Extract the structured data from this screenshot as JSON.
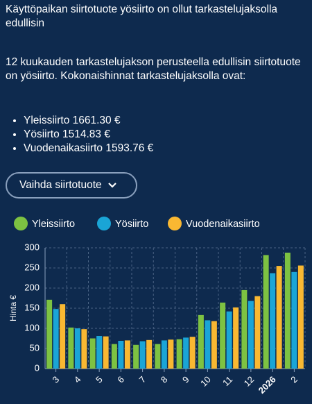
{
  "header": {
    "title": "Käyttöpaikan siirtotuote yösiirto on ollut tarkastelujaksolla edullisin",
    "description": "12 kuukauden tarkastelujakson perusteella edullisin siirtotuote on yösiirto. Kokonaishinnat tarkastelujaksolla ovat:",
    "items": [
      "Yleissiirto 1661.30 €",
      "Yösiirto 1514.83 €",
      "Vuodenaikasiirto 1593.76 €"
    ]
  },
  "button": {
    "label": "Vaihda siirtotuote"
  },
  "chart_data": {
    "type": "bar",
    "y_label": "Hinta €",
    "categories": [
      "3",
      "4",
      "5",
      "6",
      "7",
      "8",
      "9",
      "10",
      "11",
      "12",
      "2026",
      "2"
    ],
    "series": [
      {
        "name": "Yleissiirto",
        "color": "#7dc242",
        "values": [
          171,
          102,
          75,
          61,
          59,
          61,
          73,
          133,
          164,
          195,
          282,
          288
        ]
      },
      {
        "name": "Yösiirto",
        "color": "#1aa5d6",
        "values": [
          148,
          100,
          81,
          69,
          68,
          70,
          77,
          120,
          142,
          168,
          237,
          240
        ]
      },
      {
        "name": "Vuodenaikasiirto",
        "color": "#f9b832",
        "values": [
          160,
          98,
          80,
          70,
          71,
          72,
          79,
          118,
          152,
          180,
          255,
          256
        ]
      }
    ],
    "ylim": [
      0,
      300
    ],
    "yticks": [
      0,
      50,
      100,
      150,
      200,
      250,
      300
    ],
    "grid": true
  }
}
